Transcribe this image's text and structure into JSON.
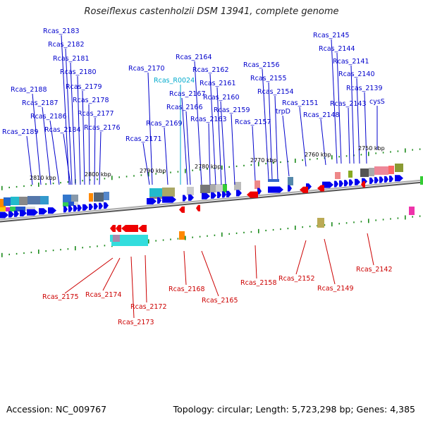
{
  "title": "Roseiflexus castenholzii DSM 13941, complete genome",
  "footer": {
    "accession": "Accession: NC_009767",
    "summary": "Topology: circular; Length: 5,723,298 bp; Genes: 4,385"
  },
  "colors": {
    "forward_label": "#0000cc",
    "reverse_label": "#cc0000",
    "rna_label": "#00aacc",
    "forward_arrow": "#0000ee",
    "reverse_arrow": "#ee0000",
    "backbone": "#808080",
    "tick": "#1a8a1a"
  },
  "scale_labels": [
    "2810 kbp",
    "2800 kbp",
    "2790 kbp",
    "2780 kbp",
    "2770 kbp",
    "2760 kbp",
    "2750 kbp"
  ],
  "forward_genes": [
    "Rcas_2189",
    "Rcas_2188",
    "Rcas_2187",
    "Rcas_2186",
    "Rcas_2184",
    "Rcas_2183",
    "Rcas_2182",
    "Rcas_2181",
    "Rcas_2180",
    "Rcas_2179",
    "Rcas_2178",
    "Rcas_2177",
    "Rcas_2176",
    "Rcas_2171",
    "Rcas_2170",
    "Rcas_2169",
    "Rcas_2167",
    "Rcas_2166",
    "Rcas_2164",
    "Rcas_2163",
    "Rcas_2162",
    "Rcas_2161",
    "Rcas_2160",
    "Rcas_2159",
    "Rcas_2157",
    "Rcas_2156",
    "Rcas_2155",
    "Rcas_2154",
    "trpD",
    "Rcas_2151",
    "Rcas_2148",
    "Rcas_2145",
    "Rcas_2144",
    "Rcas_2143",
    "Rcas_2141",
    "Rcas_2140",
    "Rcas_2139",
    "cysS"
  ],
  "rna_genes": [
    "Rcas_R0024"
  ],
  "reverse_genes": [
    "Rcas_2175",
    "Rcas_2174",
    "Rcas_2172",
    "Rcas_2173",
    "Rcas_2168",
    "Rcas_2165",
    "Rcas_2158",
    "Rcas_2152",
    "Rcas_2149",
    "Rcas_2142"
  ]
}
